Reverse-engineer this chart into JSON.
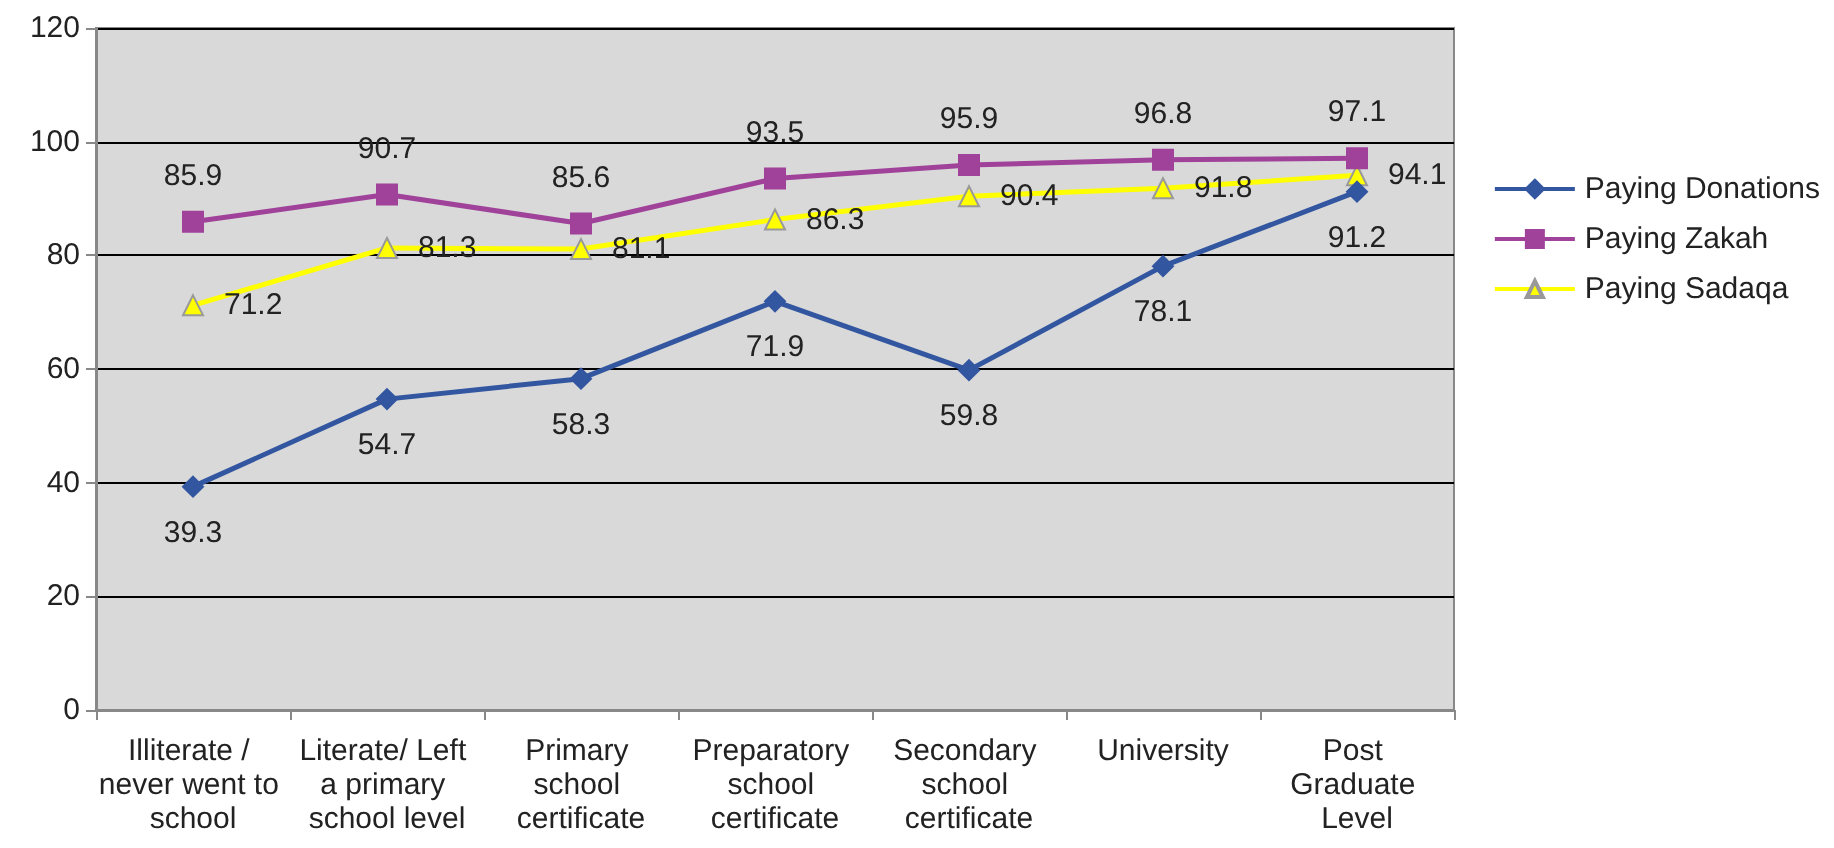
{
  "chart_data": {
    "type": "line",
    "categories": [
      "Illiterate / never went to school",
      "Literate/ Left a primary school level",
      "Primary school certificate",
      "Preparatory school certificate",
      "Secondary school certificate",
      "University",
      "Post Graduate Level"
    ],
    "series": [
      {
        "name": "Paying Donations",
        "color": "#3356a0",
        "marker": "diamond",
        "values": [
          39.3,
          54.7,
          58.3,
          71.9,
          59.8,
          78.1,
          91.2
        ]
      },
      {
        "name": "Paying Zakah",
        "color": "#a0429a",
        "marker": "square",
        "values": [
          85.9,
          90.7,
          85.6,
          93.5,
          95.9,
          96.8,
          97.1
        ]
      },
      {
        "name": "Paying Sadaqa",
        "color": "#ffff00",
        "marker": "triangle",
        "values": [
          71.2,
          81.3,
          81.1,
          86.3,
          90.4,
          91.8,
          94.1
        ]
      }
    ],
    "ylim": [
      0,
      120
    ],
    "yticks": [
      0,
      20,
      40,
      60,
      80,
      100,
      120
    ],
    "grid": "y",
    "legend": "right",
    "data_labels": true
  }
}
